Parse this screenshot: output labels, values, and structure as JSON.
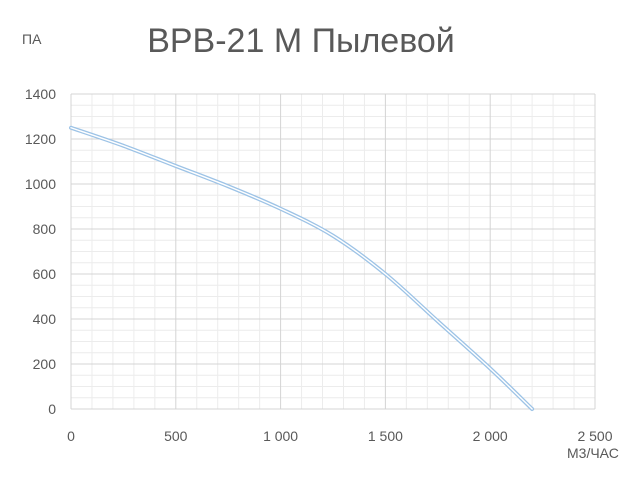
{
  "chart_data": {
    "type": "line",
    "title": "ВРВ-21 М Пылевой",
    "ylabel": "ПА",
    "xlabel": "М3/ЧАС",
    "xlim": [
      0,
      2500
    ],
    "ylim": [
      0,
      1400
    ],
    "x_ticks": [
      {
        "value": 0,
        "label": "0"
      },
      {
        "value": 500,
        "label": "500"
      },
      {
        "value": 1000,
        "label": "1 000"
      },
      {
        "value": 1500,
        "label": "1 500"
      },
      {
        "value": 2000,
        "label": "2 000"
      },
      {
        "value": 2500,
        "label": "2 500"
      }
    ],
    "y_ticks": [
      {
        "value": 0,
        "label": "0"
      },
      {
        "value": 200,
        "label": "200"
      },
      {
        "value": 400,
        "label": "400"
      },
      {
        "value": 600,
        "label": "600"
      },
      {
        "value": 800,
        "label": "800"
      },
      {
        "value": 1000,
        "label": "1000"
      },
      {
        "value": 1200,
        "label": "1200"
      },
      {
        "value": 1400,
        "label": "1400"
      }
    ],
    "grid": true,
    "x_minor_step": 100,
    "y_minor_step": 50,
    "series": [
      {
        "color": "#9dc3e6",
        "x": [
          0,
          250,
          500,
          750,
          1000,
          1250,
          1500,
          1750,
          2000,
          2200
        ],
        "values": [
          1250,
          1170,
          1080,
          990,
          890,
          770,
          600,
          390,
          180,
          0
        ]
      }
    ]
  }
}
